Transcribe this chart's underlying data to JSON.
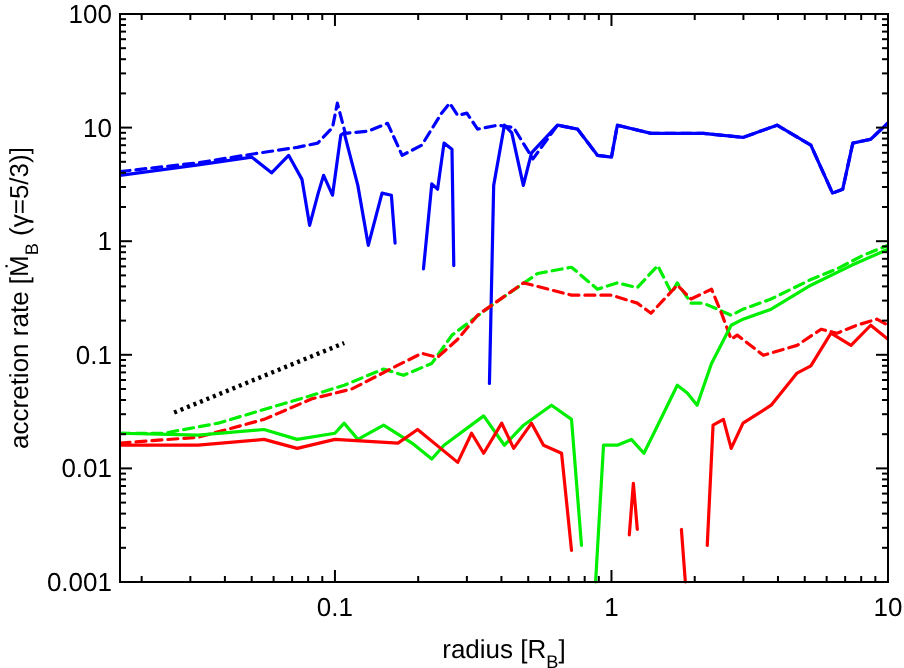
{
  "chart_data": {
    "type": "line",
    "xlabel": "radius [R$_{B}$]",
    "ylabel": "accretion rate [Ṁ$_{B}$ (γ=5/3)]",
    "log": "xy",
    "grid": false,
    "xlim": [
      0.0167,
      10
    ],
    "ylim": [
      0.001,
      100
    ],
    "xticks": [
      {
        "value": 0.02,
        "label": null
      },
      {
        "value": 0.03,
        "label": null
      },
      {
        "value": 0.04,
        "label": null
      },
      {
        "value": 0.05,
        "label": null
      },
      {
        "value": 0.06,
        "label": null
      },
      {
        "value": 0.07,
        "label": null
      },
      {
        "value": 0.08,
        "label": null
      },
      {
        "value": 0.09,
        "label": null
      },
      0.1,
      {
        "value": 0.2,
        "label": null
      },
      {
        "value": 0.3,
        "label": null
      },
      {
        "value": 0.4,
        "label": null
      },
      {
        "value": 0.5,
        "label": null
      },
      {
        "value": 0.6,
        "label": null
      },
      {
        "value": 0.7,
        "label": null
      },
      {
        "value": 0.8,
        "label": null
      },
      {
        "value": 0.9,
        "label": null
      },
      1,
      {
        "value": 2,
        "label": null
      },
      {
        "value": 3,
        "label": null
      },
      {
        "value": 4,
        "label": null
      },
      {
        "value": 5,
        "label": null
      },
      {
        "value": 6,
        "label": null
      },
      {
        "value": 7,
        "label": null
      },
      {
        "value": 8,
        "label": null
      },
      {
        "value": 9,
        "label": null
      },
      10
    ],
    "yticks": [
      0.001,
      {
        "value": 0.002,
        "label": null
      },
      {
        "value": 0.003,
        "label": null
      },
      {
        "value": 0.004,
        "label": null
      },
      {
        "value": 0.005,
        "label": null
      },
      {
        "value": 0.006,
        "label": null
      },
      {
        "value": 0.007,
        "label": null
      },
      {
        "value": 0.008,
        "label": null
      },
      {
        "value": 0.009,
        "label": null
      },
      0.01,
      {
        "value": 0.02,
        "label": null
      },
      {
        "value": 0.03,
        "label": null
      },
      {
        "value": 0.04,
        "label": null
      },
      {
        "value": 0.05,
        "label": null
      },
      {
        "value": 0.06,
        "label": null
      },
      {
        "value": 0.07,
        "label": null
      },
      {
        "value": 0.08,
        "label": null
      },
      {
        "value": 0.09,
        "label": null
      },
      0.1,
      {
        "value": 0.2,
        "label": null
      },
      {
        "value": 0.3,
        "label": null
      },
      {
        "value": 0.4,
        "label": null
      },
      {
        "value": 0.5,
        "label": null
      },
      {
        "value": 0.6,
        "label": null
      },
      {
        "value": 0.7,
        "label": null
      },
      {
        "value": 0.8,
        "label": null
      },
      {
        "value": 0.9,
        "label": null
      },
      1,
      {
        "value": 2,
        "label": null
      },
      {
        "value": 3,
        "label": null
      },
      {
        "value": 4,
        "label": null
      },
      {
        "value": 5,
        "label": null
      },
      {
        "value": 6,
        "label": null
      },
      {
        "value": 7,
        "label": null
      },
      {
        "value": 8,
        "label": null
      },
      {
        "value": 9,
        "label": null
      },
      10,
      {
        "value": 20,
        "label": null
      },
      {
        "value": 30,
        "label": null
      },
      {
        "value": 40,
        "label": null
      },
      {
        "value": 50,
        "label": null
      },
      {
        "value": 60,
        "label": null
      },
      {
        "value": 70,
        "label": null
      },
      {
        "value": 80,
        "label": null
      },
      {
        "value": 90,
        "label": null
      },
      100
    ],
    "series": [
      {
        "color": "#0000ff",
        "line_style": "dashed",
        "x": [
          0.0167,
          0.032,
          0.0526,
          0.073,
          0.0866,
          0.098,
          0.102,
          0.109,
          0.132,
          0.155,
          0.175,
          0.206,
          0.243,
          0.26,
          0.278,
          0.3,
          0.328,
          0.388,
          0.443,
          0.52,
          0.638,
          0.754,
          0.89,
          1,
          1.05,
          1.39,
          2.15,
          2.99,
          3.97,
          5.26,
          6.3,
          6.86,
          7.46,
          8.66,
          10
        ],
        "values": [
          4.1,
          4.9,
          5.95,
          6.7,
          7.3,
          10,
          16.4,
          8.9,
          9.3,
          10.9,
          5.7,
          7,
          13.4,
          16.4,
          12.8,
          13.4,
          9.7,
          10.5,
          10,
          5.3,
          10.5,
          9.7,
          5.7,
          5.5,
          10.5,
          8.9,
          8.9,
          8.2,
          10.5,
          7,
          2.65,
          2.87,
          7.3,
          7.9,
          11
        ]
      },
      {
        "color": "#0000ff",
        "line_style": "solid",
        "x": [
          0.0167,
          0.032,
          0.05,
          0.059,
          0.068,
          0.076,
          0.081,
          0.087,
          0.091,
          0.098,
          0.105,
          0.108,
          0.121,
          0.132,
          0.148,
          0.16,
          0.165,
          0.18,
          0.209,
          0.224,
          0.235,
          0.248,
          0.265,
          0.269,
          0.3,
          0.362,
          0.375,
          0.41,
          0.436,
          0.48,
          0.514,
          0.638,
          0.754,
          0.89,
          1,
          1.05,
          1.39,
          2.15,
          2.99,
          3.97,
          5.26,
          6.3,
          6.86,
          7.46,
          8.66,
          10
        ],
        "values": [
          3.8,
          4.7,
          5.5,
          4,
          5.7,
          3.5,
          1.38,
          2.65,
          3.8,
          2.54,
          8.6,
          9,
          3.1,
          0.92,
          2.65,
          2.54,
          0.96,
          null,
          0.57,
          3.2,
          2.87,
          7.3,
          6.45,
          0.61,
          null,
          0.056,
          3.1,
          10.5,
          9,
          3.1,
          6,
          10.5,
          9.7,
          5.7,
          5.5,
          10.5,
          8.9,
          8.9,
          8.2,
          10.5,
          7,
          2.65,
          2.87,
          7.3,
          7.9,
          11
        ]
      },
      {
        "color": "#00ee00",
        "line_style": "dashed",
        "x": [
          0.0167,
          0.0241,
          0.0378,
          0.0554,
          0.0826,
          0.108,
          0.15,
          0.177,
          0.224,
          0.265,
          0.369,
          0.541,
          0.717,
          0.89,
          1.05,
          1.24,
          1.47,
          1.65,
          1.73,
          1.94,
          2.15,
          2.71,
          2.99,
          3.78,
          5.26,
          6.54,
          8.12,
          10
        ],
        "values": [
          0.0204,
          0.0204,
          0.025,
          0.033,
          0.044,
          0.054,
          0.075,
          0.066,
          0.084,
          0.149,
          0.273,
          0.52,
          0.59,
          0.378,
          0.43,
          0.39,
          0.61,
          0.35,
          0.43,
          0.285,
          0.285,
          0.223,
          0.252,
          0.31,
          0.46,
          0.57,
          0.75,
          0.92
        ]
      },
      {
        "color": "#ff0000",
        "line_style": "dashed",
        "x": [
          0.0167,
          0.032,
          0.0554,
          0.0826,
          0.115,
          0.169,
          0.206,
          0.235,
          0.278,
          0.328,
          0.481,
          0.717,
          1,
          1.24,
          1.39,
          1.73,
          1.94,
          2.3,
          2.5,
          2.71,
          2.85,
          3.54,
          4.69,
          5.73,
          6.54,
          7.7,
          9.12,
          10
        ],
        "values": [
          0.0167,
          0.0188,
          0.027,
          0.041,
          0.05,
          0.081,
          0.103,
          0.095,
          0.137,
          0.223,
          0.43,
          0.335,
          0.335,
          0.285,
          0.232,
          0.41,
          0.31,
          0.378,
          0.232,
          0.137,
          0.149,
          0.099,
          0.121,
          0.168,
          0.155,
          0.182,
          0.206,
          0.182
        ]
      },
      {
        "color": "#00ee00",
        "line_style": "solid",
        "x": [
          0.0167,
          0.032,
          0.0554,
          0.073,
          0.1,
          0.108,
          0.121,
          0.15,
          0.19,
          0.224,
          0.248,
          0.345,
          0.41,
          0.481,
          0.607,
          0.717,
          0.779,
          0.83,
          0.876,
          0.936,
          1.05,
          1.18,
          1.31,
          1.47,
          1.73,
          1.88,
          2.04,
          2.3,
          2.71,
          2.99,
          3.78,
          5.26,
          7.35,
          10
        ],
        "values": [
          0.0204,
          0.0196,
          0.022,
          0.018,
          0.0204,
          0.025,
          0.018,
          0.024,
          0.0167,
          0.0121,
          0.016,
          0.029,
          0.016,
          0.024,
          0.036,
          0.027,
          0.0021,
          null,
          0.001,
          0.016,
          0.016,
          0.018,
          0.0136,
          0.024,
          0.054,
          0.046,
          0.036,
          0.084,
          0.182,
          0.206,
          0.252,
          0.41,
          0.61,
          0.85
        ]
      },
      {
        "color": "#ff0000",
        "line_style": "solid",
        "x": [
          0.0167,
          0.032,
          0.0554,
          0.073,
          0.1,
          0.169,
          0.199,
          0.278,
          0.312,
          0.345,
          0.401,
          0.443,
          0.514,
          0.568,
          0.66,
          0.717,
          0.9,
          1.16,
          1.2,
          1.24,
          1.5,
          1.79,
          1.85,
          2.0,
          2.22,
          2.33,
          2.54,
          2.71,
          2.99,
          3.78,
          4.69,
          5.26,
          6.22,
          7.35,
          8.66,
          10
        ],
        "values": [
          0.016,
          0.016,
          0.018,
          0.015,
          0.018,
          0.0167,
          0.022,
          0.0113,
          0.0204,
          0.0136,
          0.025,
          0.015,
          0.025,
          0.016,
          0.0136,
          0.0019,
          null,
          0.0026,
          0.0074,
          0.0029,
          null,
          0.0029,
          0.001,
          null,
          0.0021,
          0.024,
          0.027,
          0.015,
          0.025,
          0.036,
          0.069,
          0.08,
          0.155,
          0.121,
          0.182,
          0.137
        ]
      },
      {
        "type": "line",
        "color": "#000000",
        "line_style": "dotted",
        "x": [
          0.0262,
          0.108
        ],
        "values": [
          0.031,
          0.127
        ]
      }
    ]
  }
}
